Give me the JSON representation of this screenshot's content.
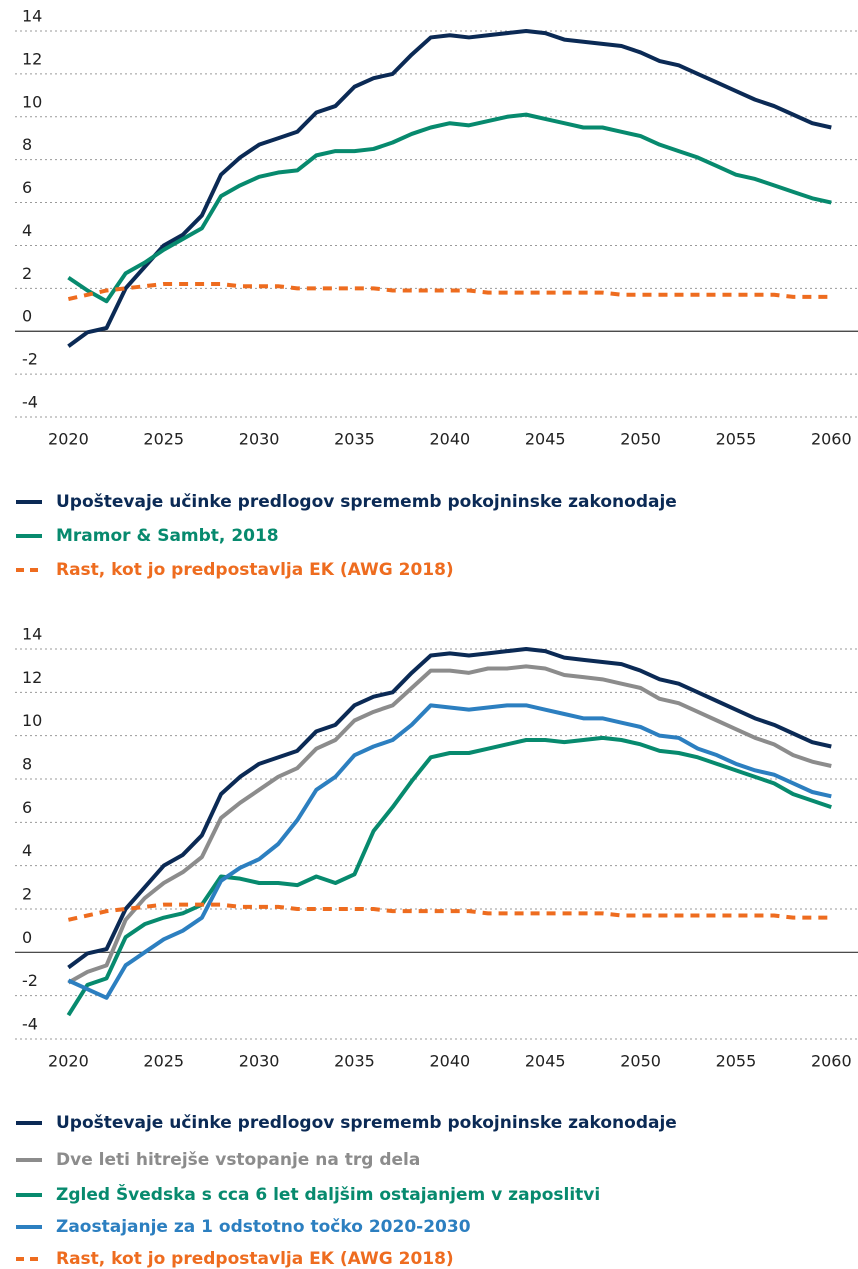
{
  "chart_data": [
    {
      "type": "line",
      "x": [
        2020,
        2021,
        2022,
        2023,
        2024,
        2025,
        2026,
        2027,
        2028,
        2029,
        2030,
        2031,
        2032,
        2033,
        2034,
        2035,
        2036,
        2037,
        2038,
        2039,
        2040,
        2041,
        2042,
        2043,
        2044,
        2045,
        2046,
        2047,
        2048,
        2049,
        2050,
        2051,
        2052,
        2053,
        2054,
        2055,
        2056,
        2057,
        2058,
        2059,
        2060
      ],
      "xlim": [
        2017.2,
        2061.4
      ],
      "xticks": [
        2020,
        2025,
        2030,
        2035,
        2040,
        2045,
        2050,
        2055,
        2060
      ],
      "ylim": [
        -4,
        14
      ],
      "yticks": [
        -4,
        -2,
        0,
        2,
        4,
        6,
        8,
        10,
        12,
        14
      ],
      "grid": true,
      "series": [
        {
          "name": "Upoštevaje učinke predlogov sprememb pokojninske zakonodaje",
          "color": "#0b2a55",
          "dashed": false,
          "values": [
            -0.7,
            -0.05,
            0.15,
            2.0,
            3.0,
            4.0,
            4.5,
            5.4,
            7.3,
            8.1,
            8.7,
            9.0,
            9.3,
            10.2,
            10.5,
            11.4,
            11.8,
            12.0,
            12.9,
            13.7,
            13.8,
            13.7,
            13.8,
            13.9,
            14.0,
            13.9,
            13.6,
            13.5,
            13.4,
            13.3,
            13.0,
            12.6,
            12.4,
            12.0,
            11.6,
            11.2,
            10.8,
            10.5,
            10.1,
            9.7,
            9.5
          ]
        },
        {
          "name": "Mramor & Sambt, 2018",
          "color": "#078a6e",
          "dashed": false,
          "values": [
            2.5,
            1.9,
            1.4,
            2.7,
            3.2,
            3.8,
            4.3,
            4.8,
            6.3,
            6.8,
            7.2,
            7.4,
            7.5,
            8.2,
            8.4,
            8.4,
            8.5,
            8.8,
            9.2,
            9.5,
            9.7,
            9.6,
            9.8,
            10.0,
            10.1,
            9.9,
            9.7,
            9.5,
            9.5,
            9.3,
            9.1,
            8.7,
            8.4,
            8.1,
            7.7,
            7.3,
            7.1,
            6.8,
            6.5,
            6.2,
            6.0
          ]
        },
        {
          "name": "Rast, kot jo predpostavlja EK (AWG 2018)",
          "color": "#ee6c1f",
          "dashed": true,
          "values": [
            1.5,
            1.7,
            1.9,
            2.0,
            2.1,
            2.2,
            2.2,
            2.2,
            2.2,
            2.1,
            2.1,
            2.1,
            2.0,
            2.0,
            2.0,
            2.0,
            2.0,
            1.9,
            1.9,
            1.9,
            1.9,
            1.9,
            1.8,
            1.8,
            1.8,
            1.8,
            1.8,
            1.8,
            1.8,
            1.7,
            1.7,
            1.7,
            1.7,
            1.7,
            1.7,
            1.7,
            1.7,
            1.7,
            1.6,
            1.6,
            1.6
          ]
        }
      ]
    },
    {
      "type": "line",
      "x": [
        2020,
        2021,
        2022,
        2023,
        2024,
        2025,
        2026,
        2027,
        2028,
        2029,
        2030,
        2031,
        2032,
        2033,
        2034,
        2035,
        2036,
        2037,
        2038,
        2039,
        2040,
        2041,
        2042,
        2043,
        2044,
        2045,
        2046,
        2047,
        2048,
        2049,
        2050,
        2051,
        2052,
        2053,
        2054,
        2055,
        2056,
        2057,
        2058,
        2059,
        2060
      ],
      "xlim": [
        2017.2,
        2061.4
      ],
      "xticks": [
        2020,
        2025,
        2030,
        2035,
        2040,
        2045,
        2050,
        2055,
        2060
      ],
      "ylim": [
        -4,
        14
      ],
      "yticks": [
        -4,
        -2,
        0,
        2,
        4,
        6,
        8,
        10,
        12,
        14
      ],
      "grid": true,
      "series": [
        {
          "name": "Upoštevaje učinke predlogov sprememb pokojninske zakonodaje",
          "color": "#0b2a55",
          "dashed": false,
          "values": [
            -0.7,
            -0.05,
            0.15,
            2.0,
            3.0,
            4.0,
            4.5,
            5.4,
            7.3,
            8.1,
            8.7,
            9.0,
            9.3,
            10.2,
            10.5,
            11.4,
            11.8,
            12.0,
            12.9,
            13.7,
            13.8,
            13.7,
            13.8,
            13.9,
            14.0,
            13.9,
            13.6,
            13.5,
            13.4,
            13.3,
            13.0,
            12.6,
            12.4,
            12.0,
            11.6,
            11.2,
            10.8,
            10.5,
            10.1,
            9.7,
            9.5
          ]
        },
        {
          "name": "Dve leti hitrejše vstopanje na trg dela",
          "color": "#8c8c8c",
          "dashed": false,
          "values": [
            -1.4,
            -0.9,
            -0.6,
            1.5,
            2.5,
            3.2,
            3.7,
            4.4,
            6.2,
            6.9,
            7.5,
            8.1,
            8.5,
            9.4,
            9.8,
            10.7,
            11.1,
            11.4,
            12.2,
            13.0,
            13.0,
            12.9,
            13.1,
            13.1,
            13.2,
            13.1,
            12.8,
            12.7,
            12.6,
            12.4,
            12.2,
            11.7,
            11.5,
            11.1,
            10.7,
            10.3,
            9.9,
            9.6,
            9.1,
            8.8,
            8.6
          ]
        },
        {
          "name": "Zgled Švedska s cca 6 let daljšim ostajanjem v zaposlitvi",
          "color": "#078a6e",
          "dashed": false,
          "values": [
            -2.9,
            -1.5,
            -1.2,
            0.7,
            1.3,
            1.6,
            1.8,
            2.2,
            3.5,
            3.4,
            3.2,
            3.2,
            3.1,
            3.5,
            3.2,
            3.6,
            5.6,
            6.7,
            7.9,
            9.0,
            9.2,
            9.2,
            9.4,
            9.6,
            9.8,
            9.8,
            9.7,
            9.8,
            9.9,
            9.8,
            9.6,
            9.3,
            9.2,
            9.0,
            8.7,
            8.4,
            8.1,
            7.8,
            7.3,
            7.0,
            6.7
          ]
        },
        {
          "name": "Zaostajanje za 1 odstotno točko 2020-2030",
          "color": "#2c7fc0",
          "dashed": false,
          "values": [
            -1.3,
            -1.7,
            -2.1,
            -0.6,
            0.0,
            0.6,
            1.0,
            1.6,
            3.3,
            3.9,
            4.3,
            5.0,
            6.1,
            7.5,
            8.1,
            9.1,
            9.5,
            9.8,
            10.5,
            11.4,
            11.3,
            11.2,
            11.3,
            11.4,
            11.4,
            11.2,
            11.0,
            10.8,
            10.8,
            10.6,
            10.4,
            10.0,
            9.9,
            9.4,
            9.1,
            8.7,
            8.4,
            8.2,
            7.8,
            7.4,
            7.2
          ]
        },
        {
          "name": "Rast, kot jo predpostavlja EK (AWG 2018)",
          "color": "#ee6c1f",
          "dashed": true,
          "values": [
            1.5,
            1.7,
            1.9,
            2.0,
            2.1,
            2.2,
            2.2,
            2.2,
            2.2,
            2.1,
            2.1,
            2.1,
            2.0,
            2.0,
            2.0,
            2.0,
            2.0,
            1.9,
            1.9,
            1.9,
            1.9,
            1.9,
            1.8,
            1.8,
            1.8,
            1.8,
            1.8,
            1.8,
            1.8,
            1.7,
            1.7,
            1.7,
            1.7,
            1.7,
            1.7,
            1.7,
            1.7,
            1.7,
            1.6,
            1.6,
            1.6
          ]
        }
      ]
    }
  ]
}
